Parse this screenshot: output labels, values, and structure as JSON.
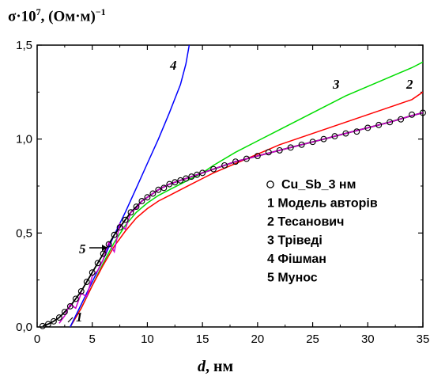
{
  "chart_data": {
    "type": "line",
    "ylabel_base": "σ·10",
    "ylabel_exp": "7",
    "ylabel_unit": ", (Ом·м)",
    "ylabel_unit_exp": "−1",
    "xlabel_var": "d",
    "xlabel_unit": ", нм",
    "xlim": [
      0,
      35
    ],
    "ylim": [
      0,
      1.5
    ],
    "x_ticks": [
      "0",
      "5",
      "10",
      "15",
      "20",
      "25",
      "30",
      "35"
    ],
    "y_ticks": [
      "0,0",
      "0,5",
      "1,0",
      "1,5"
    ],
    "legend_position": "center-right",
    "legend": [
      "Cu_Sb_3 нм",
      "1 Модель авторів",
      "2 Тесанович",
      "3 Тріведі",
      "4 Фішман",
      "5 Мунос"
    ],
    "curve_labels": [
      "1",
      "2",
      "3",
      "4",
      "5"
    ],
    "colors": {
      "data": "#000000",
      "model": "#000000",
      "tesanovich": "#ff0000",
      "trivedi": "#00dd00",
      "fishman": "#0000ff",
      "munos": "#cc00cc"
    },
    "series": [
      {
        "name": "Cu_Sb_3 нм",
        "marker": "circle",
        "x": [
          0.5,
          1,
          1.5,
          2,
          2.5,
          3,
          3.5,
          4,
          4.5,
          5,
          5.5,
          6,
          6.5,
          7,
          7.5,
          8,
          8.5,
          9,
          9.5,
          10,
          10.5,
          11,
          11.5,
          12,
          12.5,
          13,
          13.5,
          14,
          14.5,
          15,
          16,
          17,
          18,
          19,
          20,
          21,
          22,
          23,
          24,
          25,
          26,
          27,
          28,
          29,
          30,
          31,
          32,
          33,
          34,
          35
        ],
        "y": [
          0.005,
          0.015,
          0.03,
          0.05,
          0.08,
          0.11,
          0.15,
          0.19,
          0.24,
          0.29,
          0.34,
          0.39,
          0.44,
          0.49,
          0.53,
          0.57,
          0.61,
          0.64,
          0.67,
          0.69,
          0.71,
          0.73,
          0.74,
          0.76,
          0.77,
          0.78,
          0.79,
          0.8,
          0.81,
          0.82,
          0.84,
          0.86,
          0.88,
          0.895,
          0.91,
          0.93,
          0.94,
          0.955,
          0.97,
          0.985,
          1.0,
          1.015,
          1.03,
          1.04,
          1.06,
          1.075,
          1.09,
          1.105,
          1.13,
          1.14
        ]
      },
      {
        "name": "1 Модель авторів",
        "x": [
          0.5,
          1,
          1.5,
          2,
          2.5,
          3,
          3.5,
          4,
          4.5,
          5,
          5.5,
          6,
          6.5,
          7,
          7.5,
          8,
          8.5,
          9,
          9.5,
          10,
          11,
          12,
          13,
          14,
          15,
          16,
          17,
          18,
          19,
          20,
          22,
          24,
          26,
          28,
          30,
          32,
          34,
          35
        ],
        "y": [
          0.005,
          0.015,
          0.03,
          0.05,
          0.08,
          0.11,
          0.15,
          0.19,
          0.24,
          0.29,
          0.34,
          0.39,
          0.44,
          0.49,
          0.53,
          0.57,
          0.61,
          0.64,
          0.67,
          0.69,
          0.73,
          0.76,
          0.78,
          0.8,
          0.82,
          0.84,
          0.86,
          0.88,
          0.895,
          0.91,
          0.94,
          0.97,
          1.0,
          1.03,
          1.06,
          1.09,
          1.125,
          1.14
        ]
      },
      {
        "name": "2 Тесанович",
        "x": [
          3,
          4,
          5,
          6,
          7,
          8,
          9,
          10,
          11,
          12,
          13,
          14,
          15,
          16,
          18,
          20,
          22,
          24,
          26,
          28,
          30,
          32,
          34,
          35
        ],
        "y": [
          0.0,
          0.1,
          0.22,
          0.33,
          0.43,
          0.51,
          0.58,
          0.63,
          0.67,
          0.7,
          0.73,
          0.76,
          0.79,
          0.82,
          0.87,
          0.92,
          0.97,
          1.01,
          1.05,
          1.09,
          1.13,
          1.17,
          1.21,
          1.25
        ]
      },
      {
        "name": "3 Тріведі",
        "x": [
          3,
          4,
          5,
          6,
          7,
          8,
          9,
          10,
          11,
          12,
          13,
          14,
          15,
          16,
          18,
          20,
          22,
          24,
          26,
          28,
          30,
          32,
          34,
          35
        ],
        "y": [
          0.0,
          0.1,
          0.22,
          0.34,
          0.45,
          0.54,
          0.61,
          0.66,
          0.7,
          0.73,
          0.76,
          0.79,
          0.82,
          0.86,
          0.93,
          0.99,
          1.05,
          1.11,
          1.17,
          1.23,
          1.28,
          1.33,
          1.38,
          1.41
        ]
      },
      {
        "name": "4 Фішман",
        "x": [
          3,
          4,
          5,
          6,
          7,
          8,
          9,
          10,
          11,
          12,
          13,
          13.5,
          13.8
        ],
        "y": [
          0.0,
          0.12,
          0.24,
          0.36,
          0.49,
          0.61,
          0.74,
          0.87,
          1.0,
          1.14,
          1.29,
          1.4,
          1.5
        ]
      },
      {
        "name": "5 Мунос",
        "x": [
          2,
          2.5,
          3,
          3.5,
          4,
          4.5,
          5,
          5.5,
          6,
          6.5,
          7,
          7.5,
          8,
          8.5,
          9,
          9.5,
          10,
          11,
          12,
          13,
          14,
          15,
          16,
          18,
          20,
          22,
          24,
          26,
          28,
          30,
          32,
          34,
          35
        ],
        "y": [
          0.02,
          0.06,
          0.12,
          0.1,
          0.18,
          0.16,
          0.27,
          0.3,
          0.36,
          0.45,
          0.4,
          0.55,
          0.52,
          0.61,
          0.63,
          0.67,
          0.69,
          0.73,
          0.76,
          0.78,
          0.8,
          0.82,
          0.84,
          0.88,
          0.91,
          0.94,
          0.97,
          1.0,
          1.03,
          1.06,
          1.09,
          1.125,
          1.14
        ]
      }
    ]
  }
}
